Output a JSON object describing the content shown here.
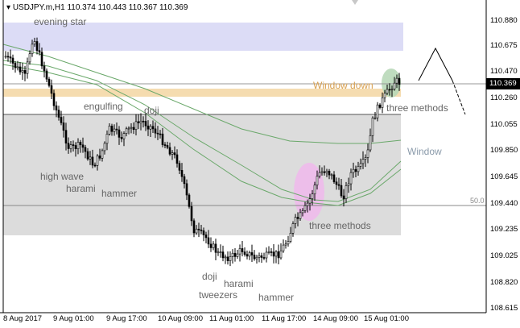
{
  "header": {
    "symbol_label": "USDJPY.m,H1",
    "ohlc": "110.374 110.443 110.367 110.369"
  },
  "price_badge": "110.369",
  "level_tag": "50.0",
  "colors": {
    "zone_blue": "#dcdcf6",
    "zone_orange": "#f5dcb0",
    "zone_gray": "#dcdcdc",
    "highlight_pink": "#f0b8ec",
    "highlight_green": "#b8d8b8",
    "ma_line": "#6aa86a",
    "candle": "#000000",
    "annotation_text": "#666666",
    "window_down_text": "#d8a050",
    "window_text": "#8a9aaa"
  },
  "annotations": {
    "evening_star": "evening star",
    "engulfing": "engulfing",
    "doji_top": "doji",
    "high_wave": "high wave",
    "harami_left": "harami",
    "hammer_left": "hammer",
    "doji_bottom": "doji",
    "harami_bottom": "harami",
    "tweezers": "tweezers",
    "hammer_bottom": "hammer",
    "three_methods_low": "three methods",
    "three_methods_high": "three methods",
    "window_down": "Window down",
    "window": "Window"
  },
  "y_axis": {
    "ticks": [
      "110.880",
      "110.675",
      "110.470",
      "110.260",
      "110.055",
      "109.850",
      "109.645",
      "109.440",
      "109.235",
      "109.025",
      "108.820",
      "108.615"
    ]
  },
  "x_axis": {
    "ticks": [
      "8 Aug 2017",
      "9 Aug 01:00",
      "9 Aug 17:00",
      "10 Aug 09:00",
      "11 Aug 01:00",
      "11 Aug 17:00",
      "14 Aug 09:00",
      "15 Aug 01:00"
    ]
  }
}
